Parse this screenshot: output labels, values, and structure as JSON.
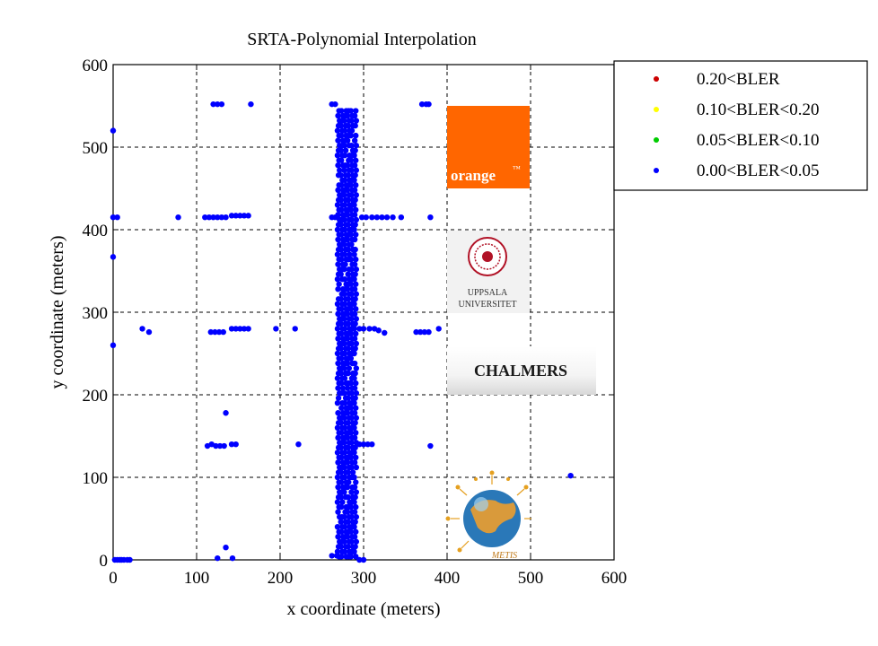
{
  "chart_data": {
    "type": "scatter",
    "title": "SRTA-Polynomial Interpolation",
    "xlabel": "x coordinate (meters)",
    "ylabel": "y coordinate (meters)",
    "xlim": [
      0,
      600
    ],
    "ylim": [
      0,
      600
    ],
    "xticks": [
      "0",
      "100",
      "200",
      "300",
      "400",
      "500",
      "600"
    ],
    "yticks": [
      "0",
      "100",
      "200",
      "300",
      "400",
      "500",
      "600"
    ],
    "grid": true,
    "legend_position": "outside-top-right",
    "legend": [
      {
        "label": "0.20<BLER",
        "color": "#cc0000"
      },
      {
        "label": "0.10<BLER<0.20",
        "color": "#ffff00"
      },
      {
        "label": "0.05<BLER<0.10",
        "color": "#00cc00"
      },
      {
        "label": "0.00<BLER<0.05",
        "color": "#0000ff"
      }
    ],
    "series": [
      {
        "label": "0.00<BLER<0.05",
        "color": "#0000ff",
        "points": [
          [
            0,
            520
          ],
          [
            0,
            415
          ],
          [
            0,
            367
          ],
          [
            0,
            260
          ],
          [
            2,
            0
          ],
          [
            5,
            415
          ],
          [
            5,
            0
          ],
          [
            8,
            0
          ],
          [
            10,
            0
          ],
          [
            13,
            0
          ],
          [
            17,
            0
          ],
          [
            20,
            0
          ],
          [
            78,
            415
          ],
          [
            35,
            280
          ],
          [
            43,
            276
          ],
          [
            120,
            552
          ],
          [
            125,
            552
          ],
          [
            130,
            552
          ],
          [
            165,
            552
          ],
          [
            110,
            415
          ],
          [
            115,
            415
          ],
          [
            120,
            415
          ],
          [
            125,
            415
          ],
          [
            130,
            415
          ],
          [
            135,
            415
          ],
          [
            142,
            417
          ],
          [
            147,
            417
          ],
          [
            152,
            417
          ],
          [
            157,
            417
          ],
          [
            162,
            417
          ],
          [
            117,
            276
          ],
          [
            122,
            276
          ],
          [
            127,
            276
          ],
          [
            132,
            276
          ],
          [
            142,
            280
          ],
          [
            147,
            280
          ],
          [
            152,
            280
          ],
          [
            157,
            280
          ],
          [
            162,
            280
          ],
          [
            195,
            280
          ],
          [
            218,
            280
          ],
          [
            113,
            138
          ],
          [
            118,
            140
          ],
          [
            123,
            138
          ],
          [
            128,
            138
          ],
          [
            133,
            138
          ],
          [
            142,
            140
          ],
          [
            147,
            140
          ],
          [
            135,
            178
          ],
          [
            222,
            140
          ],
          [
            125,
            2
          ],
          [
            135,
            15
          ],
          [
            143,
            2
          ],
          [
            262,
            552
          ],
          [
            266,
            552
          ],
          [
            262,
            415
          ],
          [
            266,
            415
          ],
          [
            298,
            415
          ],
          [
            303,
            415
          ],
          [
            310,
            415
          ],
          [
            316,
            415
          ],
          [
            322,
            415
          ],
          [
            328,
            415
          ],
          [
            335,
            415
          ],
          [
            345,
            415
          ],
          [
            380,
            415
          ],
          [
            370,
            552
          ],
          [
            375,
            552
          ],
          [
            378,
            552
          ],
          [
            295,
            280
          ],
          [
            300,
            280
          ],
          [
            307,
            280
          ],
          [
            313,
            280
          ],
          [
            318,
            278
          ],
          [
            325,
            275
          ],
          [
            363,
            276
          ],
          [
            368,
            276
          ],
          [
            373,
            276
          ],
          [
            378,
            276
          ],
          [
            295,
            140
          ],
          [
            300,
            140
          ],
          [
            305,
            140
          ],
          [
            310,
            140
          ],
          [
            380,
            138
          ],
          [
            262,
            5
          ],
          [
            268,
            5
          ],
          [
            295,
            0
          ],
          [
            300,
            0
          ],
          [
            548,
            102
          ],
          [
            390,
            280
          ]
        ]
      }
    ]
  },
  "logos": {
    "orange_text": "orange",
    "orange_mark": "™",
    "uppsala_line1": "UPPSALA",
    "uppsala_line2": "UNIVERSITET",
    "chalmers": "CHALMERS",
    "metis": "METIS"
  }
}
